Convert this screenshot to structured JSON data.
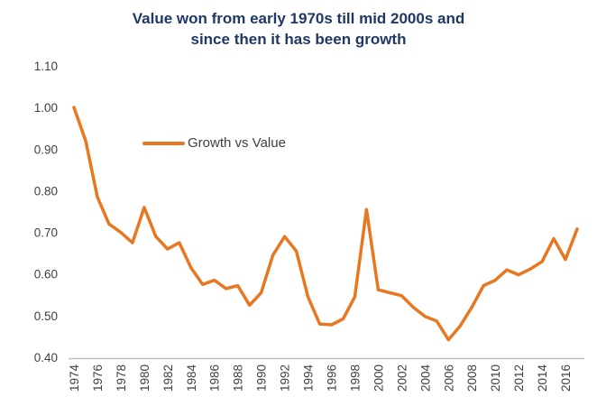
{
  "chart_data": {
    "type": "line",
    "title": "Value won from early 1970s till mid 2000s and since then it has been growth",
    "title_lines": [
      "Value won from early 1970s till mid 2000s and",
      "since then it has been growth"
    ],
    "legend": "Growth vs Value",
    "x": [
      1974,
      1975,
      1976,
      1977,
      1978,
      1979,
      1980,
      1981,
      1982,
      1983,
      1984,
      1985,
      1986,
      1987,
      1988,
      1989,
      1990,
      1991,
      1992,
      1993,
      1994,
      1995,
      1996,
      1997,
      1998,
      1999,
      2000,
      2001,
      2002,
      2003,
      2004,
      2005,
      2006,
      2007,
      2008,
      2009,
      2010,
      2011,
      2012,
      2013,
      2014,
      2015,
      2016,
      2017
    ],
    "values": [
      1.0,
      0.92,
      0.785,
      0.72,
      0.7,
      0.675,
      0.76,
      0.69,
      0.66,
      0.675,
      0.615,
      0.575,
      0.585,
      0.565,
      0.572,
      0.525,
      0.555,
      0.645,
      0.69,
      0.655,
      0.545,
      0.48,
      0.478,
      0.492,
      0.545,
      0.755,
      0.562,
      0.555,
      0.548,
      0.52,
      0.498,
      0.487,
      0.442,
      0.475,
      0.52,
      0.572,
      0.585,
      0.61,
      0.598,
      0.612,
      0.63,
      0.685,
      0.635,
      0.708
    ],
    "ylim": [
      0.4,
      1.1
    ],
    "yticks": [
      "0.40",
      "0.50",
      "0.60",
      "0.70",
      "0.80",
      "0.90",
      "1.00",
      "1.10"
    ],
    "xtick_years": [
      1974,
      1976,
      1978,
      1980,
      1982,
      1984,
      1986,
      1988,
      1990,
      1992,
      1994,
      1996,
      1998,
      2000,
      2002,
      2004,
      2006,
      2008,
      2010,
      2012,
      2014,
      2016
    ],
    "grid": false,
    "legend_position": "upper-left-inside",
    "colors": {
      "line": "#E87722",
      "title": "#1F3864",
      "axis_line": "#BFBFBF",
      "tick_labels": "#404040",
      "background": "#FFFFFF"
    }
  }
}
